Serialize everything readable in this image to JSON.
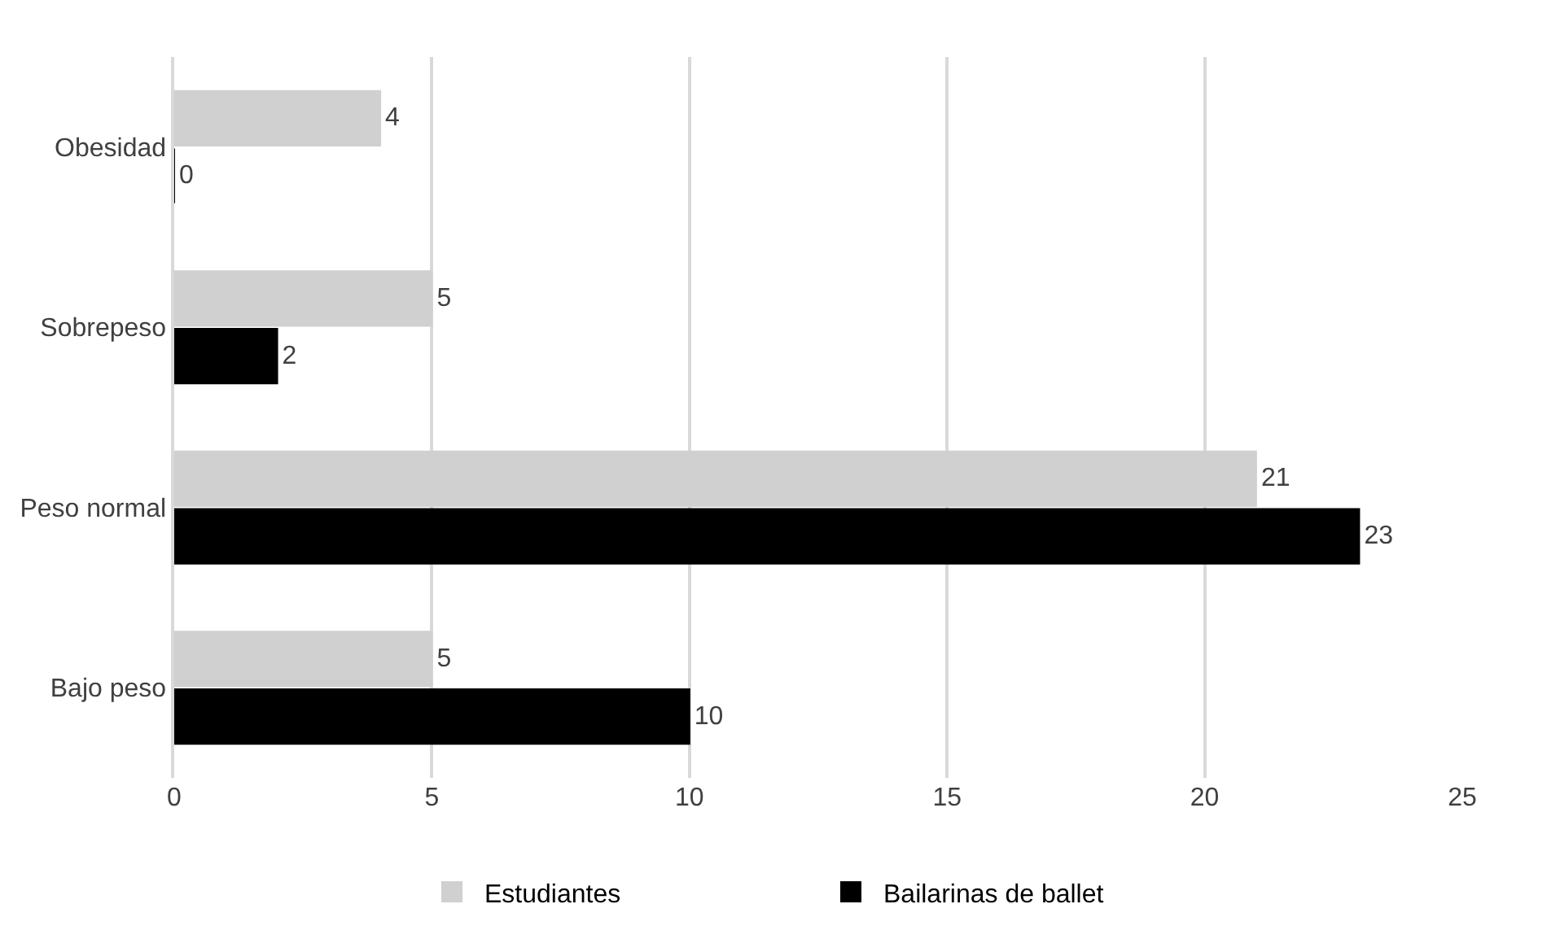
{
  "chart_data": {
    "type": "bar",
    "orientation": "horizontal",
    "categories": [
      "Obesidad",
      "Sobrepeso",
      "Peso normal",
      "Bajo peso"
    ],
    "series": [
      {
        "name": "Estudiantes",
        "color": "#d0d0d0",
        "values": [
          4,
          5,
          21,
          5
        ]
      },
      {
        "name": "Bailarinas de ballet",
        "color": "#000000",
        "values": [
          0,
          2,
          23,
          10
        ]
      }
    ],
    "xlim": [
      0,
      25
    ],
    "xticks": [
      0,
      5,
      10,
      15,
      20,
      25
    ],
    "grid": "x",
    "legend": "bottom",
    "data_labels": true
  }
}
